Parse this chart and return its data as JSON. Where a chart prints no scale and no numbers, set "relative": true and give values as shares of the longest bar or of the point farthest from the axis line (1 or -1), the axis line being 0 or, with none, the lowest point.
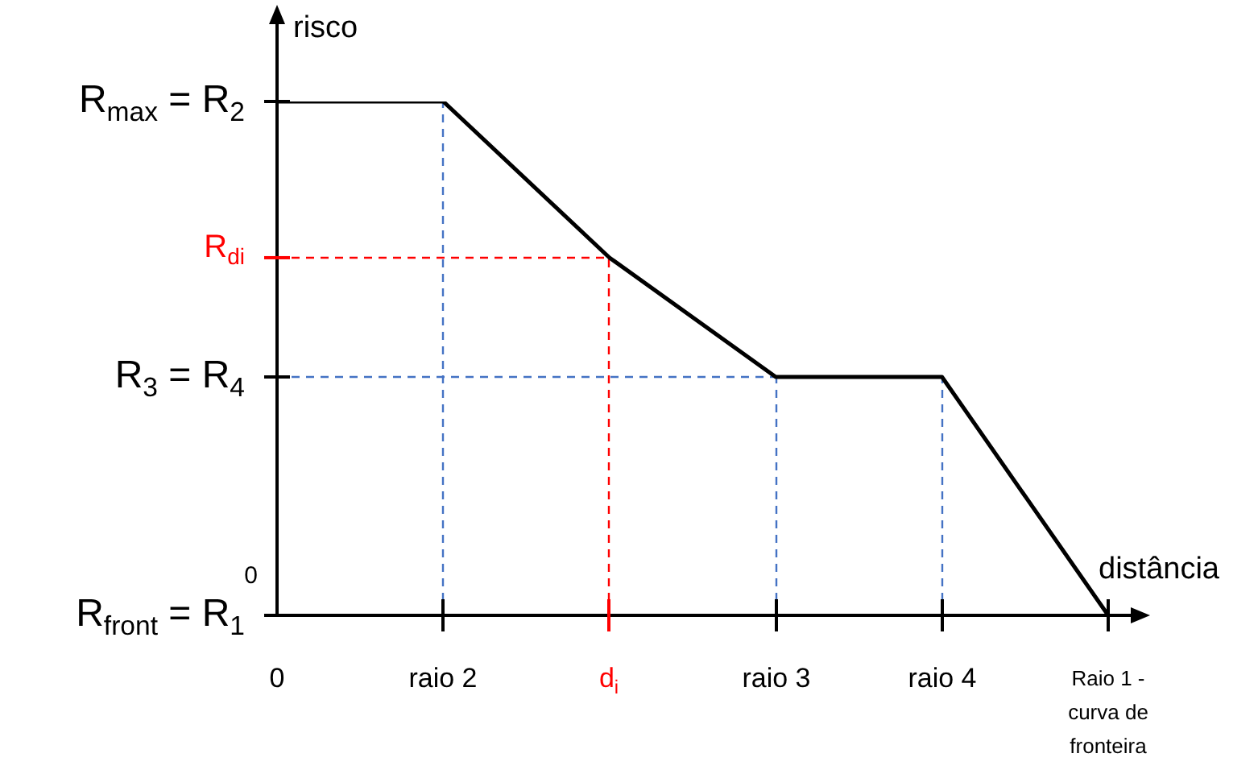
{
  "chart_data": {
    "type": "line",
    "relative": true,
    "xlabel": "distância",
    "ylabel": "risco",
    "marker": "none",
    "line_style": "solid",
    "categories": [
      "0",
      "raio 2",
      "d$_{i}$",
      "raio 3",
      "raio 4",
      "Raio 1 - curva de fronteira"
    ],
    "series": [
      {
        "color": "#000000",
        "values": [
          1,
          1,
          0.696,
          0.464,
          0.464,
          0
        ]
      }
    ],
    "annotations": [
      "R$_{max}$ = R$_{2}$",
      "R$_{3}$ = R$_{4}$",
      "R$_{front}$ = R$_{1}$",
      "0"
    ],
    "ref_lines": [
      {
        "axis": "x",
        "value": "raio 2",
        "color": "#4472c4",
        "line_style": "dashed"
      },
      {
        "axis": "x",
        "value": "raio 3",
        "color": "#4472c4",
        "line_style": "dashed"
      },
      {
        "axis": "x",
        "value": "raio 4",
        "color": "#4472c4",
        "line_style": "dashed"
      },
      {
        "axis": "y",
        "value": 0.464,
        "color": "#4472c4",
        "line_style": "dashed"
      },
      {
        "axis": "x",
        "value": "d$_{i}$",
        "color": "#ff0000",
        "line_style": "dashed"
      },
      {
        "axis": "y",
        "value": 0.696,
        "label": "R$_{di}$",
        "color": "#ff0000",
        "line_style": "dashed"
      }
    ]
  }
}
